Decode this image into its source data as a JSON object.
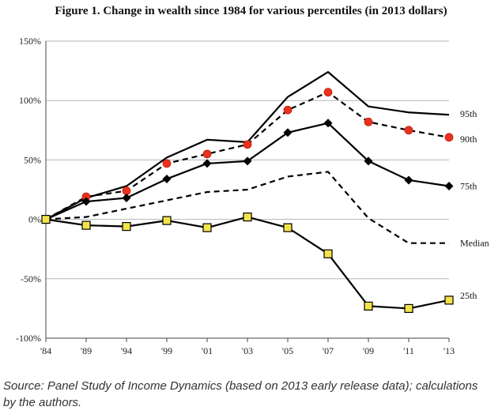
{
  "chart_data": {
    "type": "line",
    "title": "Figure 1. Change in wealth since 1984 for various percentiles (in 2013 dollars)",
    "categories": [
      "'84",
      "'89",
      "'94",
      "'99",
      "'01",
      "'03",
      "'05",
      "'07",
      "'09",
      "'11",
      "'13"
    ],
    "ylim": [
      -100,
      150
    ],
    "yticks": [
      150,
      100,
      50,
      0,
      -50,
      -100
    ],
    "ytick_labels": [
      "150%",
      "100%",
      "50%",
      "0%",
      "-50%",
      "-100%"
    ],
    "grid": "horizontal",
    "legend": "inline labels at line ends (right)",
    "series": [
      {
        "name": "95th",
        "style": "solid",
        "marker": "none",
        "color": "#000000",
        "values": [
          0,
          18,
          28,
          52,
          67,
          65,
          103,
          124,
          95,
          90,
          88
        ]
      },
      {
        "name": "90th",
        "style": "dashed",
        "marker": "circle",
        "color": "#e8321e",
        "values": [
          0,
          19,
          24,
          47,
          55,
          63,
          92,
          107,
          82,
          75,
          69
        ]
      },
      {
        "name": "75th",
        "style": "solid",
        "marker": "diamond",
        "color": "#000000",
        "values": [
          0,
          15,
          18,
          34,
          47,
          49,
          73,
          81,
          49,
          33,
          28
        ]
      },
      {
        "name": "Median",
        "style": "dashed",
        "marker": "none",
        "color": "#000000",
        "values": [
          0,
          2,
          9,
          16,
          23,
          25,
          36,
          40,
          1,
          -20,
          -20
        ]
      },
      {
        "name": "25th",
        "style": "solid",
        "marker": "square",
        "color": "#f3e34a",
        "values": [
          0,
          -5,
          -6,
          -1,
          -7,
          2,
          -7,
          -29,
          -73,
          -75,
          -68
        ]
      }
    ]
  },
  "source": "Source: Panel Study of Income Dynamics (based on 2013 early release data); calculations by the authors."
}
